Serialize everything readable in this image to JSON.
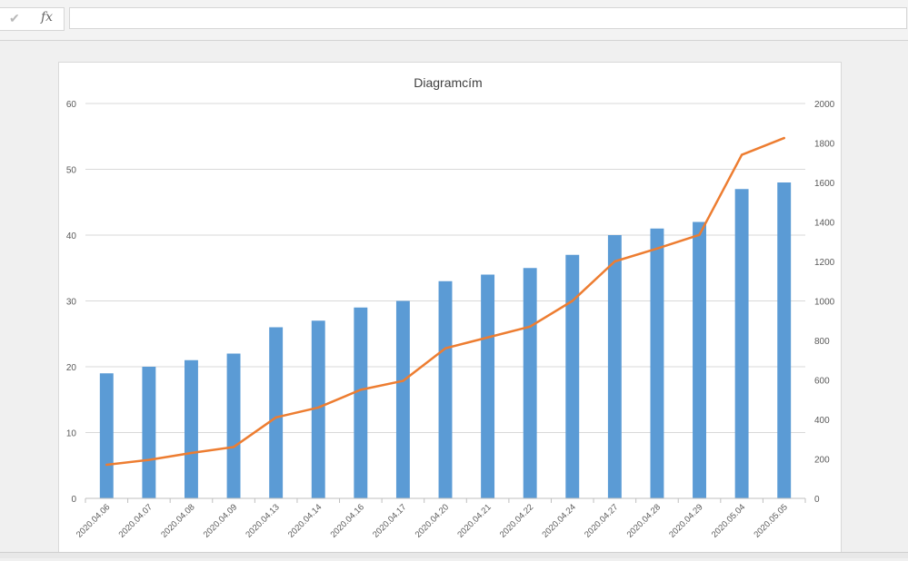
{
  "formula_bar": {
    "check_icon": "check-icon",
    "fx_icon": "fx-icon",
    "fx_label": "fx",
    "value": ""
  },
  "colors": {
    "bar": "#5b9bd5",
    "line": "#ed7d31",
    "grid": "#d9d9d9",
    "axis_text": "#595959",
    "title_text": "#404040"
  },
  "chart_data": {
    "type": "bar",
    "title": "Diagramcím",
    "categories": [
      "2020.04.06",
      "2020.04.07",
      "2020.04.08",
      "2020.04.09",
      "2020.04.13",
      "2020.04.14",
      "2020.04.16",
      "2020.04.17",
      "2020.04.20",
      "2020.04.21",
      "2020.04.22",
      "2020.04.24",
      "2020.04.27",
      "2020.04.28",
      "2020.04.29",
      "2020.05.04",
      "2020.05.05"
    ],
    "ylim_left": [
      0,
      60
    ],
    "yticks_left": [
      0,
      10,
      20,
      30,
      40,
      50,
      60
    ],
    "ylim_right": [
      0,
      2000
    ],
    "yticks_right": [
      0,
      200,
      400,
      600,
      800,
      1000,
      1200,
      1400,
      1600,
      1800,
      2000
    ],
    "grid": true,
    "legend": "none",
    "series": [
      {
        "type": "bar",
        "axis": "left",
        "values": [
          19,
          20,
          21,
          22,
          26,
          27,
          29,
          30,
          33,
          34,
          35,
          37,
          40,
          41,
          42,
          47,
          48
        ]
      },
      {
        "type": "line",
        "axis": "right",
        "values": [
          170,
          195,
          230,
          260,
          410,
          460,
          550,
          595,
          760,
          815,
          870,
          1000,
          1200,
          1265,
          1335,
          1740,
          1825
        ]
      }
    ]
  }
}
